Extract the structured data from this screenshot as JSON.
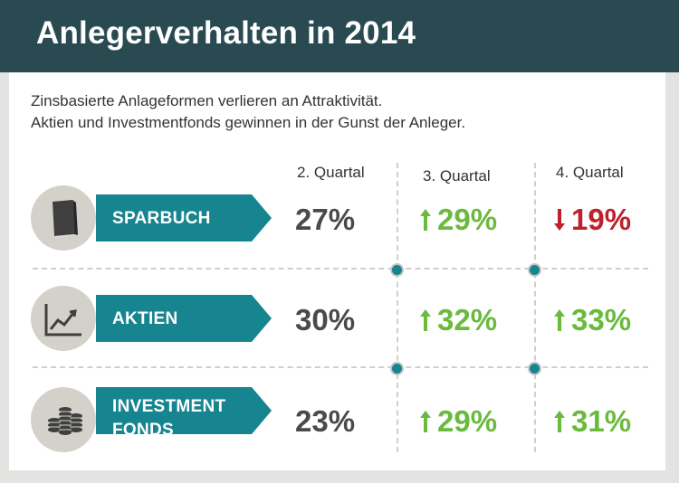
{
  "title": "Anlegerverhalten in 2014",
  "subtitle_lines": [
    "Zinsbasierte Anlageformen verlieren an Attraktivität.",
    "Aktien und Investmentfonds gewinnen in der Gunst der Anleger."
  ],
  "colors": {
    "header": "#2a4a52",
    "label_bar": "#17858f",
    "neutral_value": "#4a4a4a",
    "up": "#6aba3e",
    "down": "#c0202a"
  },
  "chart_data": {
    "type": "table",
    "title": "Anlegerverhalten in 2014",
    "columns": [
      "2. Quartal",
      "3. Quartal",
      "4. Quartal"
    ],
    "rows": [
      {
        "label_lines": [
          "SPARBUCH"
        ],
        "icon": "book-icon",
        "values": [
          27,
          29,
          19
        ],
        "display": [
          "27%",
          "29%",
          "19%"
        ],
        "trend": [
          "none",
          "up",
          "down"
        ]
      },
      {
        "label_lines": [
          "AKTIEN"
        ],
        "icon": "line-chart-icon",
        "values": [
          30,
          32,
          33
        ],
        "display": [
          "30%",
          "32%",
          "33%"
        ],
        "trend": [
          "none",
          "up",
          "up"
        ]
      },
      {
        "label_lines": [
          "INVESTMENT",
          "FONDS"
        ],
        "icon": "coin-stacks-icon",
        "values": [
          23,
          29,
          31
        ],
        "display": [
          "23%",
          "29%",
          "31%"
        ],
        "trend": [
          "none",
          "up",
          "up"
        ]
      }
    ]
  }
}
